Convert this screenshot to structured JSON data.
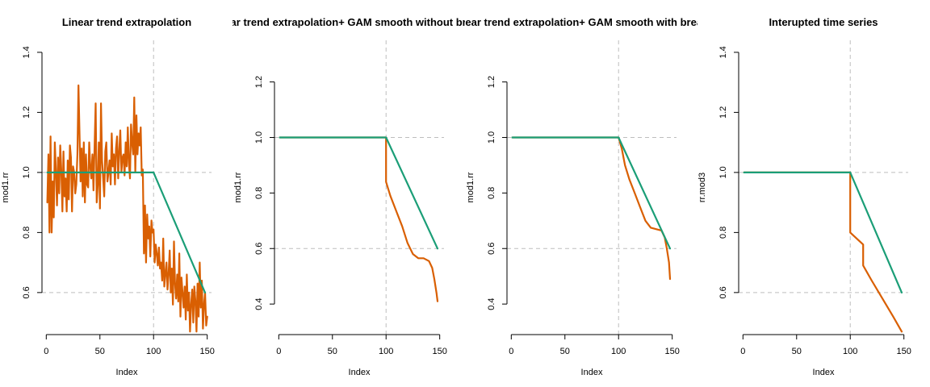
{
  "figure": {
    "background": "#ffffff"
  },
  "colors": {
    "orange": "#d95f02",
    "green": "#1b9e77",
    "ref": "#bebebe",
    "axis": "#000000"
  },
  "chart_data": [
    {
      "type": "line",
      "title": "Linear trend extrapolation",
      "xlabel": "Index",
      "ylabel": "mod1.rr",
      "xlim": [
        -4,
        154
      ],
      "ylim": [
        0.46,
        1.44
      ],
      "xticks": [
        0,
        50,
        100,
        150
      ],
      "xtick_labels": [
        "0",
        "50",
        "100",
        "150"
      ],
      "yticks": [
        0.6,
        0.8,
        1.0,
        1.2,
        1.4
      ],
      "ytick_labels": [
        "0.6",
        "0.8",
        "1.0",
        "1.2",
        "1.4"
      ],
      "vline": 100,
      "hlines": [
        1.0,
        0.6
      ],
      "series": [
        {
          "color": "#d95f02",
          "x": [
            1,
            2,
            3,
            4,
            5,
            6,
            7,
            8,
            9,
            10,
            11,
            12,
            13,
            14,
            15,
            16,
            17,
            18,
            19,
            20,
            21,
            22,
            23,
            24,
            25,
            26,
            27,
            28,
            29,
            30,
            31,
            32,
            33,
            34,
            35,
            36,
            37,
            38,
            39,
            40,
            41,
            42,
            43,
            44,
            45,
            46,
            47,
            48,
            49,
            50,
            51,
            52,
            53,
            54,
            55,
            56,
            57,
            58,
            59,
            60,
            61,
            62,
            63,
            64,
            65,
            66,
            67,
            68,
            69,
            70,
            71,
            72,
            73,
            74,
            75,
            76,
            77,
            78,
            79,
            80,
            81,
            82,
            83,
            84,
            85,
            86,
            87,
            88,
            89,
            90,
            91,
            92,
            93,
            94,
            95,
            96,
            97,
            98,
            99,
            100,
            101,
            102,
            103,
            104,
            105,
            106,
            107,
            108,
            109,
            110,
            111,
            112,
            113,
            114,
            115,
            116,
            117,
            118,
            119,
            120,
            121,
            122,
            123,
            124,
            125,
            126,
            127,
            128,
            129,
            130,
            131,
            132,
            133,
            134,
            135,
            136,
            137,
            138,
            139,
            140,
            141,
            142,
            143,
            144,
            145,
            146,
            147,
            148,
            149,
            150
          ],
          "y": [
            0.9,
            1.06,
            0.8,
            1.12,
            0.8,
            0.97,
            0.85,
            1.1,
            1.0,
            0.89,
            1.05,
            0.93,
            1.09,
            1.01,
            0.87,
            1.07,
            0.92,
            0.98,
            0.87,
            1.04,
            0.91,
            1.09,
            1.05,
            0.87,
            1.02,
            1.0,
            0.93,
            0.96,
            1.06,
            1.29,
            1.13,
            0.97,
            1.08,
            0.92,
            1.1,
            0.9,
            1.06,
            0.96,
            0.95,
            1.1,
            1.02,
            0.98,
            1.06,
            0.94,
            1.08,
            1.23,
            0.9,
            0.96,
            1.1,
            0.88,
            1.23,
            1.04,
            0.98,
            0.92,
            1.07,
            1.1,
            0.97,
            1.0,
            1.04,
            0.96,
            1.13,
            1.02,
            1.06,
            0.96,
            1.08,
            1.12,
            0.98,
            1.07,
            1.14,
            1.0,
            1.05,
            1.06,
            0.99,
            1.1,
            1.02,
            1.15,
            1.03,
            0.98,
            1.16,
            1.1,
            1.06,
            1.25,
            1.0,
            1.19,
            1.06,
            1.13,
            1.09,
            1.15,
            0.99,
            1.01,
            0.73,
            0.89,
            0.7,
            0.86,
            0.78,
            0.82,
            0.72,
            0.84,
            0.8,
            0.81,
            0.7,
            0.76,
            0.73,
            0.69,
            0.75,
            0.68,
            0.7,
            0.64,
            0.78,
            0.62,
            0.66,
            0.7,
            0.61,
            0.66,
            0.74,
            0.6,
            0.68,
            0.56,
            0.77,
            0.63,
            0.58,
            0.66,
            0.57,
            0.73,
            0.52,
            0.65,
            0.6,
            0.55,
            0.62,
            0.51,
            0.66,
            0.54,
            0.6,
            0.47,
            0.56,
            0.61,
            0.5,
            0.62,
            0.57,
            0.47,
            0.63,
            0.52,
            0.7,
            0.55,
            0.64,
            0.48,
            0.56,
            0.6,
            0.49,
            0.52
          ]
        },
        {
          "color": "#1b9e77",
          "x": [
            1,
            100,
            148
          ],
          "y": [
            1.0,
            1.0,
            0.6
          ]
        }
      ]
    },
    {
      "type": "line",
      "title": "Linear trend extrapolation+ GAM smooth  without breakpoint",
      "xlabel": "Index",
      "ylabel": "mod1.rr",
      "xlim": [
        -4,
        154
      ],
      "ylim": [
        0.29,
        1.35
      ],
      "xticks": [
        0,
        50,
        100,
        150
      ],
      "xtick_labels": [
        "0",
        "50",
        "100",
        "150"
      ],
      "yticks": [
        0.4,
        0.6,
        0.8,
        1.0,
        1.2
      ],
      "ytick_labels": [
        "0.4",
        "0.6",
        "0.8",
        "1.0",
        "1.2"
      ],
      "vline": 100,
      "hlines": [
        1.0,
        0.6
      ],
      "series": [
        {
          "color": "#d95f02",
          "x": [
            1,
            100,
            100,
            104,
            110,
            115,
            120,
            125,
            130,
            135,
            140,
            143,
            145,
            147,
            148
          ],
          "y": [
            1.0,
            1.0,
            0.84,
            0.79,
            0.73,
            0.68,
            0.62,
            0.58,
            0.565,
            0.565,
            0.555,
            0.53,
            0.49,
            0.44,
            0.41
          ]
        },
        {
          "color": "#1b9e77",
          "x": [
            1,
            100,
            148
          ],
          "y": [
            1.0,
            1.0,
            0.6
          ]
        }
      ]
    },
    {
      "type": "line",
      "title": "Linear trend extrapolation+ GAM smooth  with breakpoint",
      "xlabel": "Index",
      "ylabel": "mod1.rr",
      "xlim": [
        -4,
        154
      ],
      "ylim": [
        0.29,
        1.35
      ],
      "xticks": [
        0,
        50,
        100,
        150
      ],
      "xtick_labels": [
        "0",
        "50",
        "100",
        "150"
      ],
      "yticks": [
        0.4,
        0.6,
        0.8,
        1.0,
        1.2
      ],
      "ytick_labels": [
        "0.4",
        "0.6",
        "0.8",
        "1.0",
        "1.2"
      ],
      "vline": 100,
      "hlines": [
        1.0,
        0.6
      ],
      "series": [
        {
          "color": "#d95f02",
          "x": [
            1,
            100,
            103,
            106,
            110,
            115,
            120,
            125,
            130,
            135,
            140,
            143,
            145,
            147,
            148
          ],
          "y": [
            1.0,
            1.0,
            0.96,
            0.9,
            0.85,
            0.8,
            0.75,
            0.7,
            0.675,
            0.67,
            0.665,
            0.64,
            0.6,
            0.55,
            0.49
          ]
        },
        {
          "color": "#1b9e77",
          "x": [
            1,
            100,
            148
          ],
          "y": [
            1.0,
            1.0,
            0.6
          ]
        }
      ]
    },
    {
      "type": "line",
      "title": "Interupted time series",
      "xlabel": "Index",
      "ylabel": "rr.mod3",
      "xlim": [
        -4,
        154
      ],
      "ylim": [
        0.46,
        1.44
      ],
      "xticks": [
        0,
        50,
        100,
        150
      ],
      "xtick_labels": [
        "0",
        "50",
        "100",
        "150"
      ],
      "yticks": [
        0.6,
        0.8,
        1.0,
        1.2,
        1.4
      ],
      "ytick_labels": [
        "0.6",
        "0.8",
        "1.0",
        "1.2",
        "1.4"
      ],
      "vline": 100,
      "hlines": [
        1.0,
        0.6
      ],
      "series": [
        {
          "color": "#d95f02",
          "x": [
            1,
            100,
            100,
            112,
            112,
            120,
            130,
            140,
            148
          ],
          "y": [
            1.0,
            1.0,
            0.8,
            0.76,
            0.69,
            0.64,
            0.58,
            0.52,
            0.47
          ]
        },
        {
          "color": "#1b9e77",
          "x": [
            1,
            100,
            148
          ],
          "y": [
            1.0,
            1.0,
            0.6
          ]
        }
      ]
    }
  ]
}
